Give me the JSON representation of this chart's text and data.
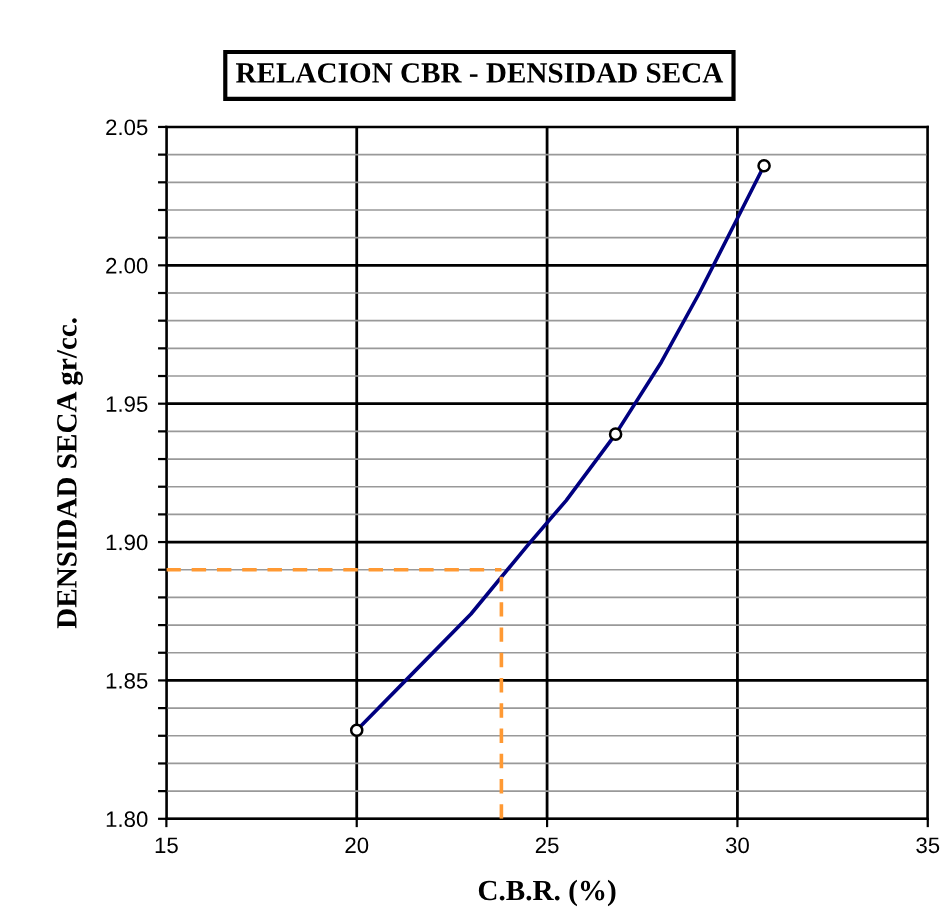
{
  "chart_data": {
    "type": "scatter",
    "title": "RELACION CBR - DENSIDAD SECA",
    "xlabel": "C.B.R. (%)",
    "ylabel": "DENSIDAD SECA gr/cc.",
    "x": [
      20.0,
      26.8,
      30.7
    ],
    "series": [
      {
        "type": "line",
        "color": "#000080",
        "x": [
          20.0,
          21.5,
          23.0,
          24.5,
          25.5,
          26.8,
          28.0,
          29.0,
          30.0,
          30.7
        ],
        "values": [
          1.832,
          1.853,
          1.874,
          1.899,
          1.915,
          1.939,
          1.965,
          1.99,
          2.017,
          2.036
        ]
      },
      {
        "color": "#000000",
        "marker": "circle",
        "values": [
          1.832,
          1.939,
          2.036
        ]
      }
    ],
    "line_style": "solid",
    "grid": true,
    "xlim": [
      15,
      35
    ],
    "xticks": [
      15,
      20,
      25,
      30,
      35
    ],
    "ylim": [
      1.8,
      2.05
    ],
    "yticks": [
      {
        "value": 1.8,
        "label": "1.80"
      },
      {
        "value": 1.81,
        "label": null
      },
      {
        "value": 1.82,
        "label": null
      },
      {
        "value": 1.83,
        "label": null
      },
      {
        "value": 1.84,
        "label": null
      },
      {
        "value": 1.85,
        "label": "1.85"
      },
      {
        "value": 1.86,
        "label": null
      },
      {
        "value": 1.87,
        "label": null
      },
      {
        "value": 1.88,
        "label": null
      },
      {
        "value": 1.89,
        "label": null
      },
      {
        "value": 1.9,
        "label": "1.90"
      },
      {
        "value": 1.91,
        "label": null
      },
      {
        "value": 1.92,
        "label": null
      },
      {
        "value": 1.93,
        "label": null
      },
      {
        "value": 1.94,
        "label": null
      },
      {
        "value": 1.95,
        "label": "1.95"
      },
      {
        "value": 1.96,
        "label": null
      },
      {
        "value": 1.97,
        "label": null
      },
      {
        "value": 1.98,
        "label": null
      },
      {
        "value": 1.99,
        "label": null
      },
      {
        "value": 2.0,
        "label": "2.00"
      },
      {
        "value": 2.01,
        "label": null
      },
      {
        "value": 2.02,
        "label": null
      },
      {
        "value": 2.03,
        "label": null
      },
      {
        "value": 2.04,
        "label": null
      },
      {
        "value": 2.05,
        "label": "2.05"
      }
    ],
    "ref_lines": [
      {
        "axis": "y",
        "value": 1.89,
        "color": "#ff9933",
        "line_style": "dashed"
      },
      {
        "axis": "x",
        "value": 23.8,
        "color": "#ff9933",
        "line_style": "dashed"
      }
    ]
  }
}
